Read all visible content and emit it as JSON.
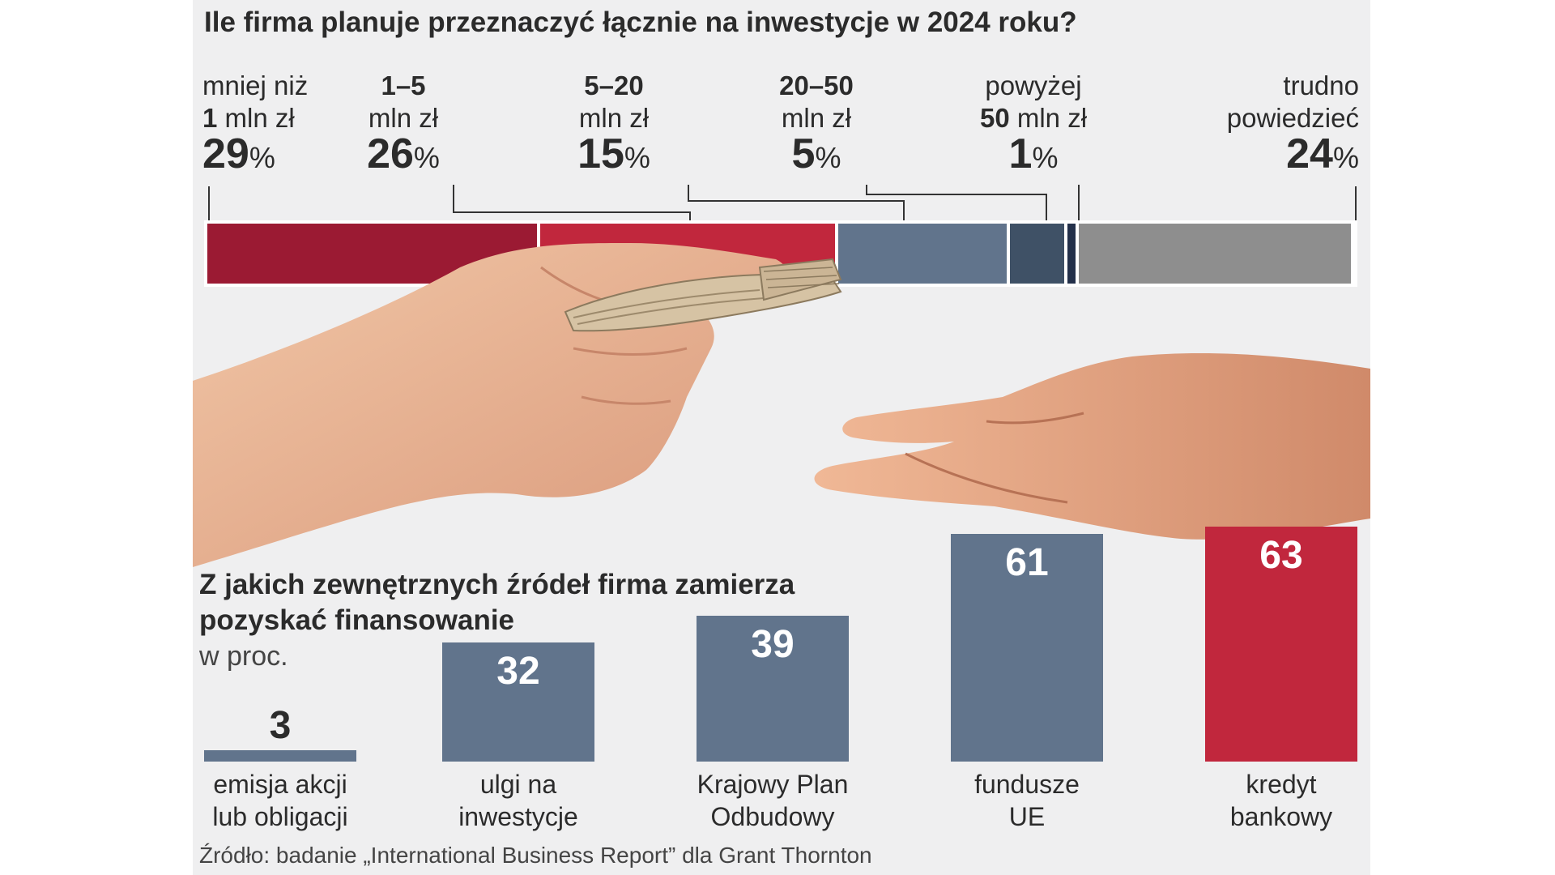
{
  "top_chart": {
    "title": "Ile firma planuje przeznaczyć łącznie na inwestycje w 2024 roku?",
    "percent_sign": "%",
    "colors": {
      "dark_red": "#9b1a33",
      "red": "#c1273d",
      "slate": "#61748c",
      "dark_slate": "#3f5166",
      "navy": "#23304a",
      "gray": "#8e8e8e"
    }
  },
  "chart_data": [
    {
      "type": "bar",
      "orientation": "horizontal-stacked",
      "title": "Ile firma planuje przeznaczyć łącznie na inwestycje w 2024 roku?",
      "categories": [
        "mniej niż 1 mln zł",
        "1–5 mln zł",
        "5–20 mln zł",
        "20–50 mln zł",
        "powyżej 50 mln zł",
        "trudno powiedzieć"
      ],
      "values": [
        29,
        26,
        15,
        5,
        1,
        24
      ],
      "labels": [
        {
          "line1": "mniej niż",
          "line2_bold": "1",
          "line2": " mln zł",
          "value": "29"
        },
        {
          "line1_bold": "1–5",
          "line2": "mln zł",
          "value": "26"
        },
        {
          "line1_bold": "5–20",
          "line2": "mln zł",
          "value": "15"
        },
        {
          "line1_bold": "20–50",
          "line2": "mln zł",
          "value": "5"
        },
        {
          "line1": "powyżej",
          "line2_bold": "50",
          "line2": " mln zł",
          "value": "1"
        },
        {
          "line1": "trudno",
          "line2": "powiedzieć",
          "value": "24"
        }
      ],
      "colors": [
        "#9b1a33",
        "#c1273d",
        "#61748c",
        "#3f5166",
        "#23304a",
        "#8e8e8e"
      ],
      "xlim": [
        0,
        100
      ]
    },
    {
      "type": "bar",
      "title": "Z jakich zewnętrznych źródeł firma zamierza pozyskać finansowanie",
      "ylabel": "w proc.",
      "categories": [
        "emisja akcji lub obligacji",
        "ulgi na inwestycje",
        "Krajowy Plan Odbudowy",
        "fundusze UE",
        "kredyt bankowy"
      ],
      "category_lines": [
        [
          "emisja akcji",
          "lub obligacji"
        ],
        [
          "ulgi na",
          "inwestycje"
        ],
        [
          "Krajowy Plan",
          "Odbudowy"
        ],
        [
          "fundusze",
          "UE"
        ],
        [
          "kredyt",
          "bankowy"
        ]
      ],
      "values": [
        3,
        32,
        39,
        61,
        63
      ],
      "value_labels": [
        "3",
        "32",
        "39",
        "61",
        "63"
      ],
      "colors": [
        "#61748c",
        "#61748c",
        "#61748c",
        "#61748c",
        "#c1273d"
      ],
      "ylim": [
        0,
        63
      ]
    }
  ],
  "bottom_chart": {
    "title_line1": "Z jakich zewnętrznych źródeł firma zamierza",
    "title_line2": "pozyskać finansowanie",
    "subtitle": "w proc."
  },
  "source": "Źródło: badanie „International Business Report” dla Grant Thornton"
}
